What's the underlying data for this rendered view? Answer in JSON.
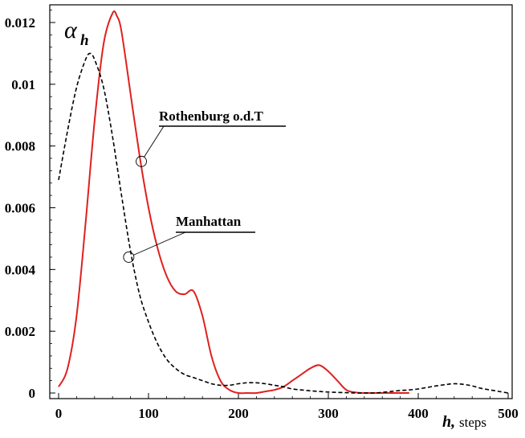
{
  "chart_data": {
    "type": "line",
    "xlim": [
      0,
      500
    ],
    "ylim": [
      0,
      0.0125
    ],
    "x_ticks": [
      "0",
      "100",
      "200",
      "300",
      "400",
      "500"
    ],
    "y_ticks": [
      "0",
      "0.002",
      "0.004",
      "0.006",
      "0.008",
      "0.01",
      "0.012"
    ],
    "ylabel_symbol": "α",
    "ylabel_sub": "h",
    "xlabel_var": "h,",
    "xlabel_unit": "steps",
    "grid": false,
    "series": [
      {
        "name": "Rothenburg o.d.T",
        "color": "#e0201e",
        "style": "solid",
        "x": [
          0,
          10,
          20,
          30,
          40,
          50,
          60,
          65,
          70,
          80,
          90,
          100,
          110,
          120,
          130,
          140,
          150,
          160,
          170,
          180,
          190,
          200,
          210,
          220,
          230,
          240,
          250,
          260,
          270,
          280,
          290,
          300,
          310,
          320,
          330,
          340,
          350,
          360,
          370,
          380,
          390
        ],
        "y": [
          0.0002,
          0.0008,
          0.0025,
          0.0055,
          0.0088,
          0.0113,
          0.0123,
          0.0122,
          0.0117,
          0.0097,
          0.0077,
          0.006,
          0.0047,
          0.0038,
          0.0033,
          0.0032,
          0.0033,
          0.0025,
          0.0012,
          0.0004,
          0.0001,
          0.0,
          0.0,
          0.0,
          5e-05,
          0.0001,
          0.0002,
          0.0004,
          0.0006,
          0.0008,
          0.0009,
          0.0007,
          0.0004,
          0.0001,
          2e-05,
          0.0,
          0.0,
          0.0,
          0.0,
          0.0,
          0.0
        ]
      },
      {
        "name": "Manhattan",
        "color": "#000000",
        "style": "dashed",
        "x": [
          0,
          10,
          20,
          30,
          35,
          40,
          50,
          60,
          70,
          80,
          90,
          100,
          110,
          120,
          130,
          140,
          150,
          160,
          170,
          180,
          190,
          200,
          210,
          220,
          230,
          240,
          250,
          260,
          270,
          280,
          290,
          300,
          310,
          320,
          330,
          340,
          350,
          360,
          370,
          380,
          390,
          400,
          410,
          420,
          430,
          440,
          450,
          460,
          470,
          480,
          490,
          500
        ],
        "y": [
          0.0069,
          0.0085,
          0.0099,
          0.0108,
          0.011,
          0.0108,
          0.0099,
          0.0083,
          0.0064,
          0.0046,
          0.0032,
          0.0023,
          0.0016,
          0.0011,
          0.0008,
          0.0006,
          0.0005,
          0.0004,
          0.0003,
          0.00025,
          0.00025,
          0.0003,
          0.00033,
          0.00033,
          0.0003,
          0.00025,
          0.0002,
          0.00013,
          0.0001,
          7e-05,
          5e-05,
          3e-05,
          2e-05,
          1e-05,
          0.0,
          0.0,
          0.0,
          2e-05,
          5e-05,
          8e-05,
          0.0001,
          0.00013,
          0.00018,
          0.00023,
          0.00027,
          0.0003,
          0.00028,
          0.00023,
          0.00015,
          0.0001,
          5e-05,
          0.0
        ]
      }
    ],
    "annotations": [
      {
        "label": "Rothenburg o.d.T",
        "series": "Rothenburg o.d.T",
        "at_x": 92,
        "at_y": 0.0075
      },
      {
        "label": "Manhattan",
        "series": "Manhattan",
        "at_x": 78,
        "at_y": 0.0044
      }
    ]
  }
}
